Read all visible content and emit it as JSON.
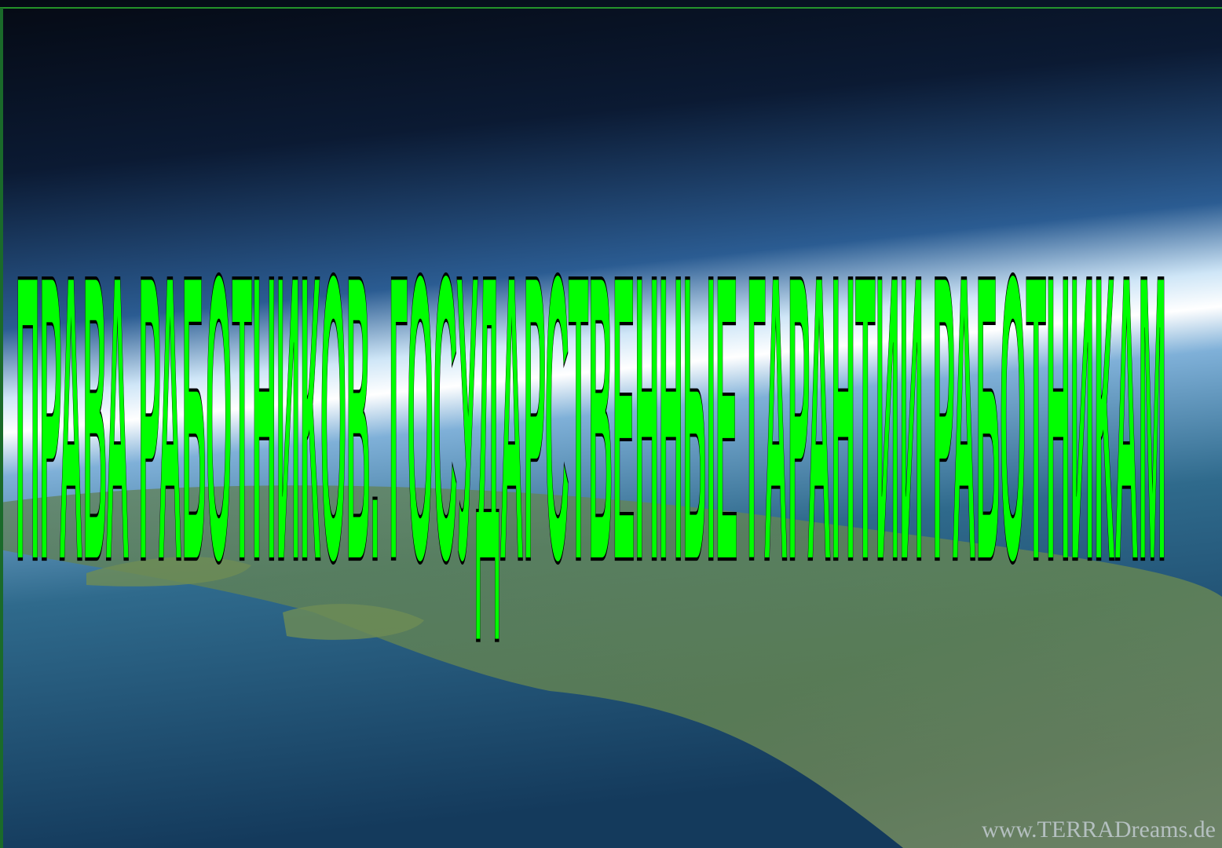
{
  "slide": {
    "title": "ПРАВА РАБОТНИКОВ. ГОСУДАРСТВЕННЫЕ ГАРАНТИИ РАБОТНИКАМ",
    "watermark": "www.TERRADreams.de"
  }
}
